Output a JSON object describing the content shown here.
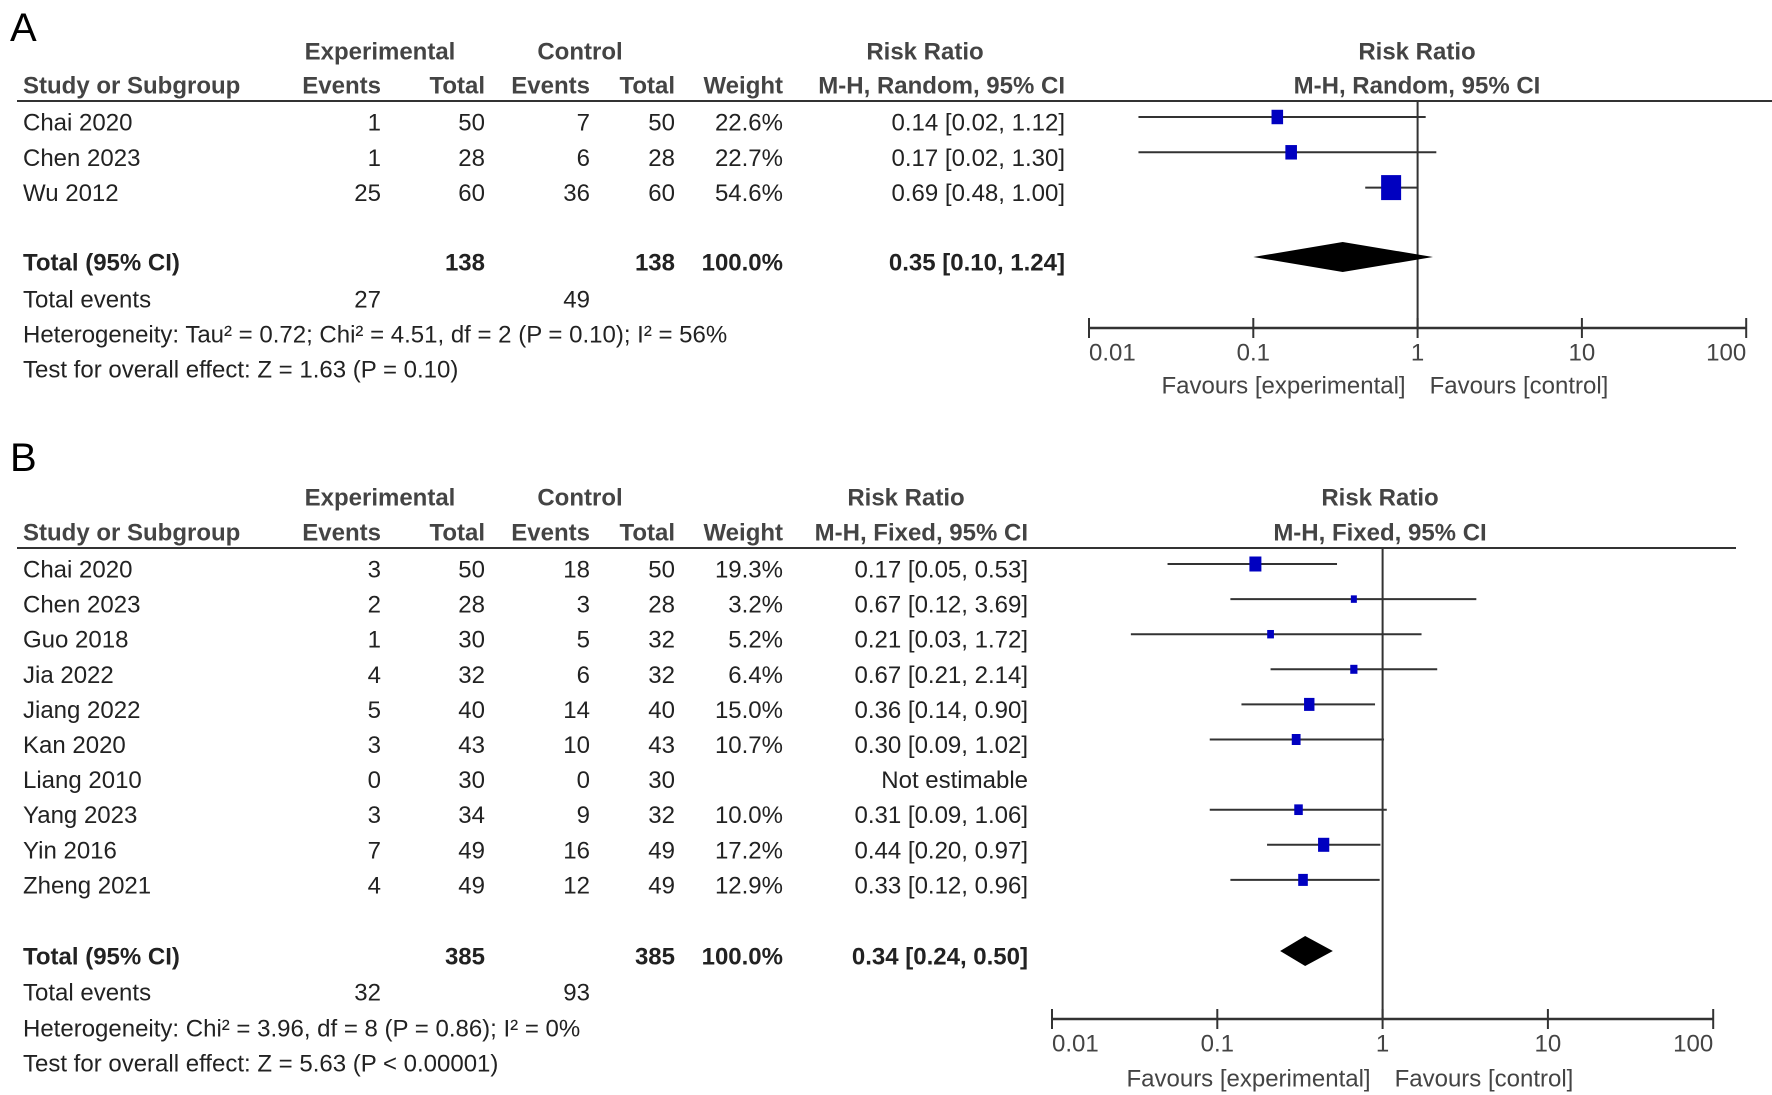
{
  "panels": [
    {
      "label": "A",
      "headers": {
        "experimental": "Experimental",
        "control": "Control",
        "risk_ratio": "Risk Ratio",
        "plot_title": "Risk Ratio",
        "study": "Study or Subgroup",
        "exp_events": "Events",
        "exp_total": "Total",
        "ctrl_events": "Events",
        "ctrl_total": "Total",
        "weight": "Weight",
        "method": "M-H, Random, 95% CI",
        "plot_method": "M-H, Random, 95% CI"
      },
      "rows": [
        {
          "study": "Chai 2020",
          "exp_events": "1",
          "exp_total": "50",
          "ctrl_events": "7",
          "ctrl_total": "50",
          "weight": "22.6%",
          "ci": "0.14 [0.02, 1.12]"
        },
        {
          "study": "Chen 2023",
          "exp_events": "1",
          "exp_total": "28",
          "ctrl_events": "6",
          "ctrl_total": "28",
          "weight": "22.7%",
          "ci": "0.17 [0.02, 1.30]"
        },
        {
          "study": "Wu 2012",
          "exp_events": "25",
          "exp_total": "60",
          "ctrl_events": "36",
          "ctrl_total": "60",
          "weight": "54.6%",
          "ci": "0.69 [0.48, 1.00]"
        }
      ],
      "total": {
        "label": "Total (95% CI)",
        "exp_total": "138",
        "ctrl_total": "138",
        "weight": "100.0%",
        "ci": "0.35 [0.10, 1.24]"
      },
      "total_events": {
        "label": "Total events",
        "exp": "27",
        "ctrl": "49"
      },
      "heterogeneity": "Heterogeneity: Tau² = 0.72; Chi² = 4.51, df = 2 (P = 0.10); I² = 56%",
      "overall_effect": "Test for overall effect: Z = 1.63 (P = 0.10)",
      "favours_left": "Favours [experimental]",
      "favours_right": "Favours [control]"
    },
    {
      "label": "B",
      "headers": {
        "experimental": "Experimental",
        "control": "Control",
        "risk_ratio": "Risk Ratio",
        "plot_title": "Risk Ratio",
        "study": "Study or Subgroup",
        "exp_events": "Events",
        "exp_total": "Total",
        "ctrl_events": "Events",
        "ctrl_total": "Total",
        "weight": "Weight",
        "method": "M-H, Fixed, 95% CI",
        "plot_method": "M-H, Fixed, 95% CI"
      },
      "rows": [
        {
          "study": "Chai 2020",
          "exp_events": "3",
          "exp_total": "50",
          "ctrl_events": "18",
          "ctrl_total": "50",
          "weight": "19.3%",
          "ci": "0.17 [0.05, 0.53]"
        },
        {
          "study": "Chen 2023",
          "exp_events": "2",
          "exp_total": "28",
          "ctrl_events": "3",
          "ctrl_total": "28",
          "weight": "3.2%",
          "ci": "0.67 [0.12, 3.69]"
        },
        {
          "study": "Guo 2018",
          "exp_events": "1",
          "exp_total": "30",
          "ctrl_events": "5",
          "ctrl_total": "32",
          "weight": "5.2%",
          "ci": "0.21 [0.03, 1.72]"
        },
        {
          "study": "Jia 2022",
          "exp_events": "4",
          "exp_total": "32",
          "ctrl_events": "6",
          "ctrl_total": "32",
          "weight": "6.4%",
          "ci": "0.67 [0.21, 2.14]"
        },
        {
          "study": "Jiang 2022",
          "exp_events": "5",
          "exp_total": "40",
          "ctrl_events": "14",
          "ctrl_total": "40",
          "weight": "15.0%",
          "ci": "0.36 [0.14, 0.90]"
        },
        {
          "study": "Kan 2020",
          "exp_events": "3",
          "exp_total": "43",
          "ctrl_events": "10",
          "ctrl_total": "43",
          "weight": "10.7%",
          "ci": "0.30 [0.09, 1.02]"
        },
        {
          "study": "Liang 2010",
          "exp_events": "0",
          "exp_total": "30",
          "ctrl_events": "0",
          "ctrl_total": "30",
          "weight": "",
          "ci": "Not estimable"
        },
        {
          "study": "Yang 2023",
          "exp_events": "3",
          "exp_total": "34",
          "ctrl_events": "9",
          "ctrl_total": "32",
          "weight": "10.0%",
          "ci": "0.31 [0.09, 1.06]"
        },
        {
          "study": "Yin 2016",
          "exp_events": "7",
          "exp_total": "49",
          "ctrl_events": "16",
          "ctrl_total": "49",
          "weight": "17.2%",
          "ci": "0.44 [0.20, 0.97]"
        },
        {
          "study": "Zheng 2021",
          "exp_events": "4",
          "exp_total": "49",
          "ctrl_events": "12",
          "ctrl_total": "49",
          "weight": "12.9%",
          "ci": "0.33 [0.12, 0.96]"
        }
      ],
      "total": {
        "label": "Total (95% CI)",
        "exp_total": "385",
        "ctrl_total": "385",
        "weight": "100.0%",
        "ci": "0.34 [0.24, 0.50]"
      },
      "total_events": {
        "label": "Total events",
        "exp": "32",
        "ctrl": "93"
      },
      "heterogeneity": "Heterogeneity: Chi² = 3.96, df = 8 (P = 0.86); I² = 0%",
      "overall_effect": "Test for overall effect: Z = 5.63 (P < 0.00001)",
      "favours_left": "Favours [experimental]",
      "favours_right": "Favours [control]"
    }
  ],
  "chart_data": [
    {
      "type": "forest",
      "x_scale": "log",
      "xlim": [
        0.01,
        100
      ],
      "x_ticks": [
        "0.01",
        "0.1",
        "1",
        "10",
        "100"
      ],
      "reference_line": 1,
      "marker_color": "#0000C0",
      "studies": [
        {
          "rr": 0.14,
          "low": 0.02,
          "high": 1.12,
          "weight": 22.6
        },
        {
          "rr": 0.17,
          "low": 0.02,
          "high": 1.3,
          "weight": 22.7
        },
        {
          "rr": 0.69,
          "low": 0.48,
          "high": 1.0,
          "weight": 54.6
        }
      ],
      "pooled": {
        "rr": 0.35,
        "low": 0.1,
        "high": 1.24
      }
    },
    {
      "type": "forest",
      "x_scale": "log",
      "xlim": [
        0.01,
        100
      ],
      "x_ticks": [
        "0.01",
        "0.1",
        "1",
        "10",
        "100"
      ],
      "reference_line": 1,
      "marker_color": "#0000C0",
      "studies": [
        {
          "rr": 0.17,
          "low": 0.05,
          "high": 0.53,
          "weight": 19.3
        },
        {
          "rr": 0.67,
          "low": 0.12,
          "high": 3.69,
          "weight": 3.2
        },
        {
          "rr": 0.21,
          "low": 0.03,
          "high": 1.72,
          "weight": 5.2
        },
        {
          "rr": 0.67,
          "low": 0.21,
          "high": 2.14,
          "weight": 6.4
        },
        {
          "rr": 0.36,
          "low": 0.14,
          "high": 0.9,
          "weight": 15.0
        },
        {
          "rr": 0.3,
          "low": 0.09,
          "high": 1.02,
          "weight": 10.7
        },
        null,
        {
          "rr": 0.31,
          "low": 0.09,
          "high": 1.06,
          "weight": 10.0
        },
        {
          "rr": 0.44,
          "low": 0.2,
          "high": 0.97,
          "weight": 17.2
        },
        {
          "rr": 0.33,
          "low": 0.12,
          "high": 0.96,
          "weight": 12.9
        }
      ],
      "pooled": {
        "rr": 0.34,
        "low": 0.24,
        "high": 0.5
      }
    }
  ]
}
